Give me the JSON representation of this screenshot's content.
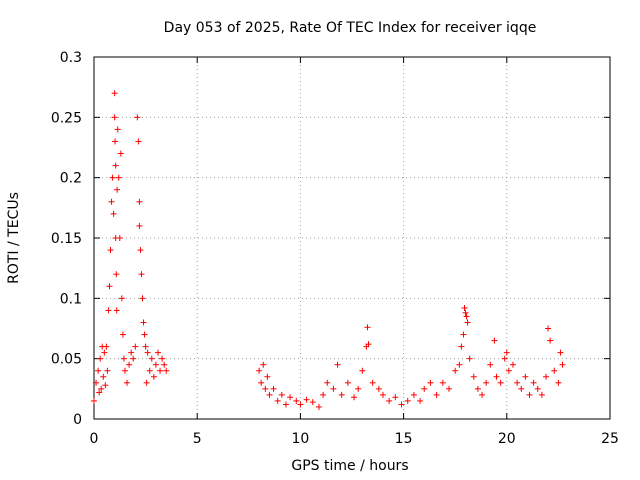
{
  "chart_data": {
    "type": "scatter",
    "title": "Day 053 of 2025, Rate Of TEC Index for receiver iqqe",
    "xlabel": "GPS time / hours",
    "ylabel": "ROTI / TECUs",
    "xlim": [
      0,
      25
    ],
    "ylim": [
      0,
      0.3
    ],
    "xticks": [
      0,
      5,
      10,
      15,
      20,
      25
    ],
    "yticks": [
      0,
      0.05,
      0.1,
      0.15,
      0.2,
      0.25,
      0.3
    ],
    "xtick_labels": [
      "0",
      "5",
      "10",
      "15",
      "20",
      "25"
    ],
    "ytick_labels": [
      "0",
      "0.05",
      "0.1",
      "0.15",
      "0.2",
      "0.25",
      "0.3"
    ],
    "grid": true,
    "marker": "+",
    "marker_color": "#ff0000",
    "series": [
      {
        "name": "ROTI",
        "x": [
          0.0,
          0.1,
          0.2,
          0.25,
          0.3,
          0.35,
          0.4,
          0.45,
          0.5,
          0.55,
          0.6,
          0.65,
          0.7,
          0.75,
          0.8,
          0.85,
          0.9,
          0.95,
          1.0,
          1.0,
          1.02,
          1.05,
          1.05,
          1.08,
          1.1,
          1.12,
          1.15,
          1.2,
          1.25,
          1.3,
          1.35,
          1.4,
          1.45,
          1.5,
          1.6,
          1.7,
          1.8,
          1.9,
          2.0,
          2.1,
          2.15,
          2.2,
          2.2,
          2.25,
          2.3,
          2.35,
          2.4,
          2.45,
          2.5,
          2.55,
          2.6,
          2.7,
          2.8,
          2.9,
          3.0,
          3.1,
          3.2,
          3.3,
          3.4,
          3.5,
          8.0,
          8.1,
          8.2,
          8.3,
          8.4,
          8.5,
          8.7,
          8.9,
          9.1,
          9.3,
          9.5,
          9.8,
          10.0,
          10.3,
          10.6,
          10.9,
          11.1,
          11.3,
          11.6,
          11.8,
          12.0,
          12.3,
          12.6,
          12.8,
          13.0,
          13.2,
          13.25,
          13.3,
          13.5,
          13.8,
          14.0,
          14.3,
          14.6,
          14.9,
          15.2,
          15.5,
          15.8,
          16.0,
          16.3,
          16.6,
          16.9,
          17.2,
          17.5,
          17.7,
          17.8,
          17.9,
          17.95,
          18.0,
          18.05,
          18.1,
          18.2,
          18.4,
          18.6,
          18.8,
          19.0,
          19.2,
          19.4,
          19.5,
          19.7,
          19.9,
          20.0,
          20.1,
          20.3,
          20.5,
          20.7,
          20.9,
          21.1,
          21.3,
          21.5,
          21.7,
          21.9,
          22.0,
          22.1,
          22.3,
          22.5,
          22.6,
          22.7
        ],
        "y": [
          0.015,
          0.03,
          0.04,
          0.022,
          0.05,
          0.025,
          0.06,
          0.035,
          0.055,
          0.028,
          0.06,
          0.04,
          0.09,
          0.11,
          0.14,
          0.18,
          0.2,
          0.17,
          0.25,
          0.27,
          0.23,
          0.21,
          0.15,
          0.12,
          0.09,
          0.19,
          0.24,
          0.2,
          0.15,
          0.22,
          0.1,
          0.07,
          0.05,
          0.04,
          0.03,
          0.045,
          0.055,
          0.05,
          0.06,
          0.25,
          0.23,
          0.18,
          0.16,
          0.14,
          0.12,
          0.1,
          0.08,
          0.07,
          0.06,
          0.03,
          0.055,
          0.04,
          0.05,
          0.035,
          0.045,
          0.055,
          0.04,
          0.05,
          0.045,
          0.04,
          0.04,
          0.03,
          0.045,
          0.025,
          0.035,
          0.02,
          0.025,
          0.015,
          0.02,
          0.012,
          0.018,
          0.015,
          0.012,
          0.016,
          0.014,
          0.01,
          0.02,
          0.03,
          0.025,
          0.045,
          0.02,
          0.03,
          0.018,
          0.025,
          0.04,
          0.06,
          0.076,
          0.062,
          0.03,
          0.025,
          0.02,
          0.015,
          0.018,
          0.012,
          0.015,
          0.02,
          0.015,
          0.025,
          0.03,
          0.02,
          0.03,
          0.025,
          0.04,
          0.045,
          0.06,
          0.07,
          0.092,
          0.088,
          0.085,
          0.08,
          0.05,
          0.035,
          0.025,
          0.02,
          0.03,
          0.045,
          0.065,
          0.035,
          0.03,
          0.05,
          0.055,
          0.04,
          0.045,
          0.03,
          0.025,
          0.035,
          0.02,
          0.03,
          0.025,
          0.02,
          0.035,
          0.075,
          0.065,
          0.04,
          0.03,
          0.055,
          0.045
        ]
      }
    ]
  }
}
